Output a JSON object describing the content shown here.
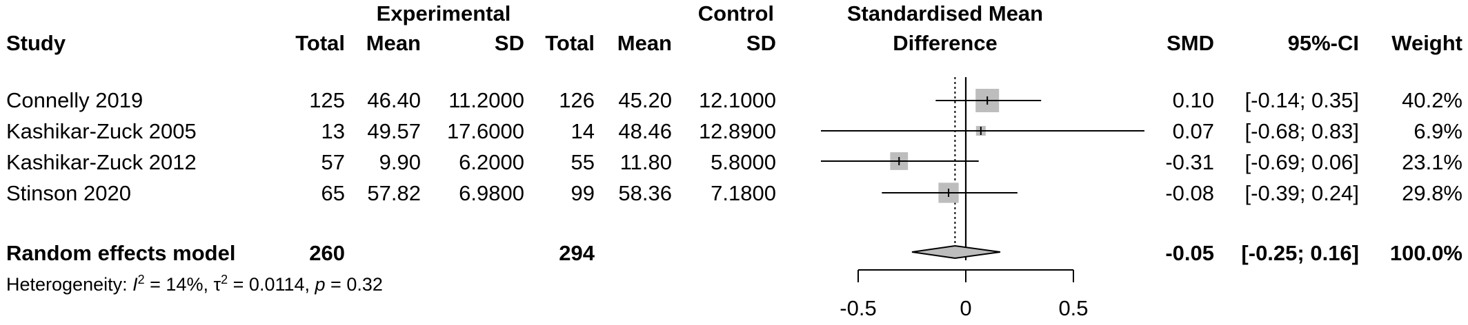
{
  "chart_data": {
    "type": "forest",
    "header": {
      "group_experimental": "Experimental",
      "group_control": "Control",
      "plot_title_line1": "Standardised Mean",
      "plot_title_line2": "Difference",
      "study": "Study",
      "total": "Total",
      "mean": "Mean",
      "sd": "SD",
      "smd": "SMD",
      "ci": "95%-CI",
      "weight": "Weight"
    },
    "studies": [
      {
        "study": "Connelly 2019",
        "e_total": "125",
        "e_mean": "46.40",
        "e_sd": "11.2000",
        "c_total": "126",
        "c_mean": "45.20",
        "c_sd": "12.1000",
        "smd_text": "0.10",
        "ci_text": "[-0.14; 0.35]",
        "weight_text": "40.2%",
        "smd": 0.1,
        "lower": -0.14,
        "upper": 0.35,
        "weight": 40.2
      },
      {
        "study": "Kashikar-Zuck 2005",
        "e_total": "13",
        "e_mean": "49.57",
        "e_sd": "17.6000",
        "c_total": "14",
        "c_mean": "48.46",
        "c_sd": "12.8900",
        "smd_text": "0.07",
        "ci_text": "[-0.68; 0.83]",
        "weight_text": "6.9%",
        "smd": 0.07,
        "lower": -0.68,
        "upper": 0.83,
        "weight": 6.9
      },
      {
        "study": "Kashikar-Zuck 2012",
        "e_total": "57",
        "e_mean": "9.90",
        "e_sd": "6.2000",
        "c_total": "55",
        "c_mean": "11.80",
        "c_sd": "5.8000",
        "smd_text": "-0.31",
        "ci_text": "[-0.69; 0.06]",
        "weight_text": "23.1%",
        "smd": -0.31,
        "lower": -0.69,
        "upper": 0.06,
        "weight": 23.1
      },
      {
        "study": "Stinson 2020",
        "e_total": "65",
        "e_mean": "57.82",
        "e_sd": "6.9800",
        "c_total": "99",
        "c_mean": "58.36",
        "c_sd": "7.1800",
        "smd_text": "-0.08",
        "ci_text": "[-0.39; 0.24]",
        "weight_text": "29.8%",
        "smd": -0.08,
        "lower": -0.39,
        "upper": 0.24,
        "weight": 29.8
      }
    ],
    "pooled": {
      "label": "Random effects model",
      "e_total": "260",
      "c_total": "294",
      "smd_text": "-0.05",
      "ci_text": "[-0.25; 0.16]",
      "weight_text": "100.0%",
      "smd": -0.05,
      "lower": -0.25,
      "upper": 0.16
    },
    "heterogeneity": {
      "prefix": "Heterogeneity: ",
      "i2_symbol": "I",
      "i2_value": " = 14%, ",
      "tau2_symbol": "τ",
      "tau2_value": " = 0.0114, ",
      "p_symbol": "p",
      "p_value": " = 0.32",
      "sup": "2"
    },
    "xaxis": {
      "ticks": [
        -0.5,
        0,
        0.5
      ],
      "tick_labels": [
        "-0.5",
        "0",
        "0.5"
      ],
      "range": [
        -0.5,
        0.5
      ]
    },
    "null_line": 0,
    "pooled_line": "dotted"
  }
}
